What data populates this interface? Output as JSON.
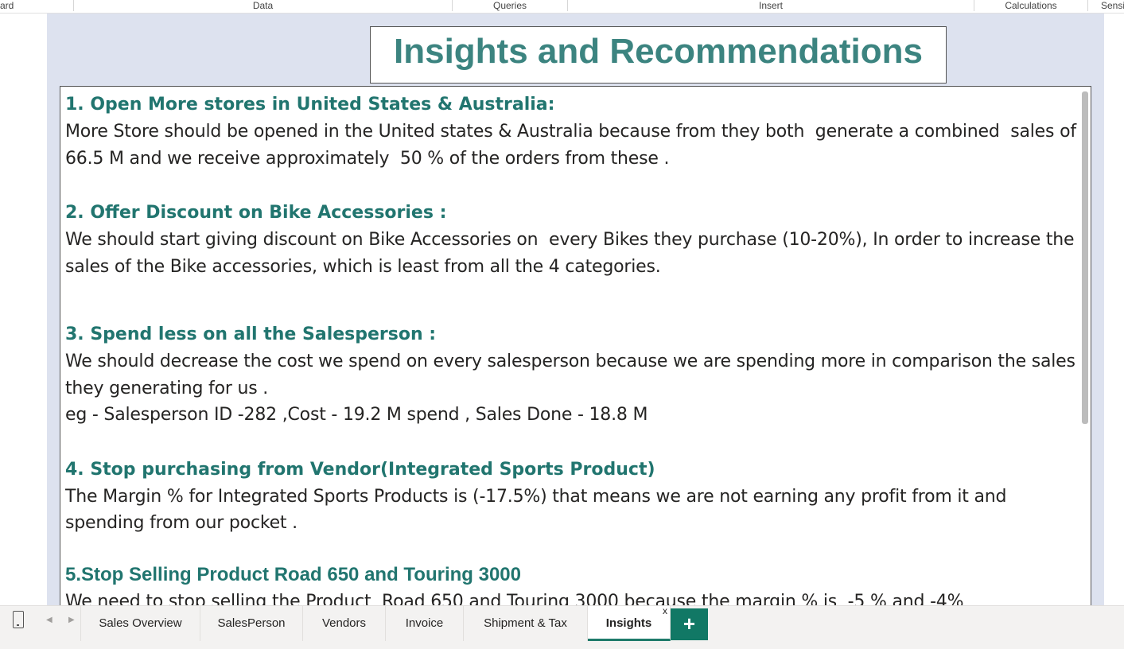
{
  "ribbon": {
    "groups": [
      "ard",
      "Data",
      "Queries",
      "Insert",
      "Calculations",
      "Sensi"
    ]
  },
  "title": "Insights and Recommendations",
  "insights": [
    {
      "heading": "1. Open More stores in United States & Australia:",
      "body": "More Store should be opened in the United states & Australia because from they both  generate a combined  sales of 66.5 M and we receive approximately  50 % of the orders from these ."
    },
    {
      "heading": "2. Offer Discount on Bike Accessories :",
      "body": "We should start giving discount on Bike Accessories on  every Bikes they purchase (10-20%), In order to increase the sales of the Bike accessories, which is least from all the 4 categories."
    },
    {
      "heading": "3. Spend less on all the Salesperson :",
      "body": "We should decrease the cost we spend on every salesperson because we are spending more in comparison the sales they generating for us .",
      "example": "eg - Salesperson ID -282 ,Cost - 19.2 M spend , Sales Done - 18.8 M"
    },
    {
      "heading": "4. Stop purchasing from Vendor(Integrated Sports Product)",
      "body": "The Margin % for Integrated Sports Products is (-17.5%) that means we are not earning any profit from it and spending from our pocket ."
    },
    {
      "heading": "5.Stop Selling Product Road 650 and Touring 3000",
      "body": "We need to stop selling the Product  Road 650 and Touring 3000 because the margin % is  -5 % and -4%"
    }
  ],
  "tabs": [
    {
      "label": "Sales Overview"
    },
    {
      "label": "SalesPerson"
    },
    {
      "label": "Vendors"
    },
    {
      "label": "Invoice"
    },
    {
      "label": "Shipment & Tax"
    },
    {
      "label": "Insights"
    }
  ],
  "active_tab_close": "x",
  "add_tab_label": "+",
  "colors": {
    "title": "#3c8480",
    "heading": "#21756f",
    "canvas": "#dde2ef",
    "add_tab": "#117865"
  },
  "icons": {
    "mobile_layout": "phone-icon",
    "prev": "chevron-left-icon",
    "next": "chevron-right-icon"
  }
}
